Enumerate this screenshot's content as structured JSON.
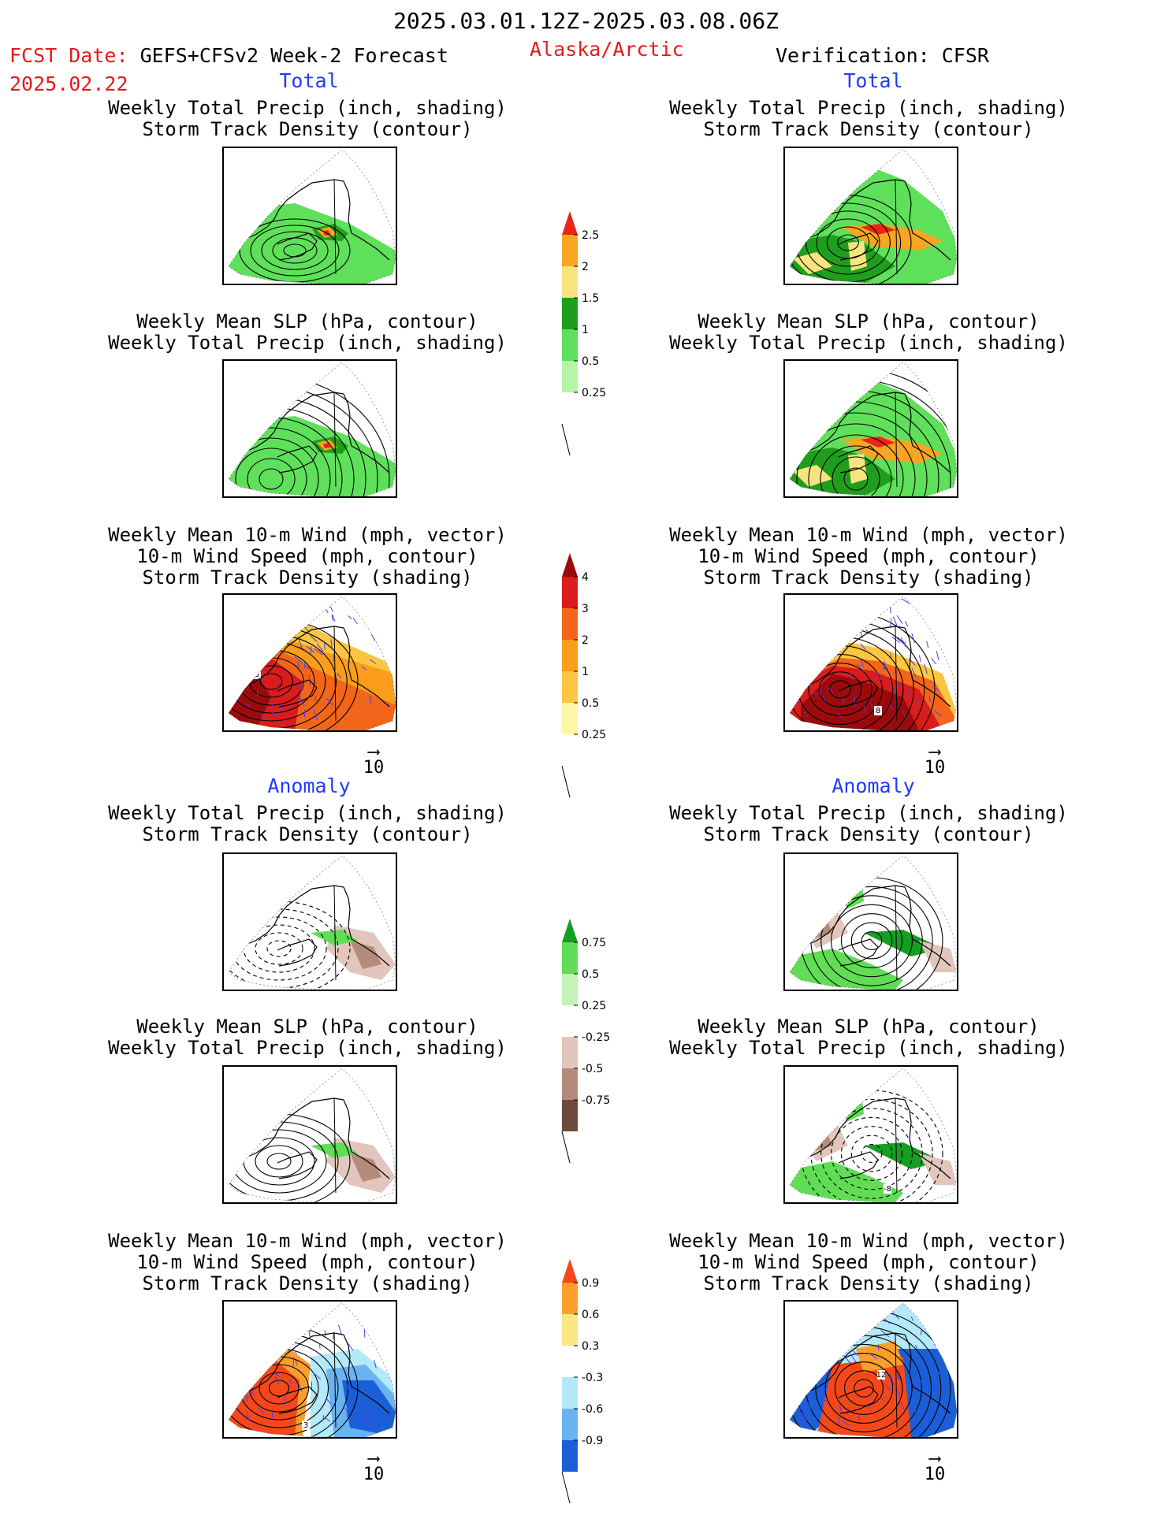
{
  "header": {
    "date_range": "2025.03.01.12Z-2025.03.08.06Z",
    "fcst_label": "FCST Date:",
    "fcst_model": "GEFS+CFSv2 Week-2 Forecast",
    "fcst_date": "2025.02.22",
    "region": "Alaska/Arctic",
    "verification": "Verification: CFSR"
  },
  "sections": {
    "total_left": "Total",
    "total_right": "Total",
    "anomaly_left": "Anomaly",
    "anomaly_right": "Anomaly"
  },
  "panel_titles": {
    "precip_track": [
      "Weekly Total Precip (inch, shading)",
      "Storm Track Density (contour)"
    ],
    "slp_precip": [
      "Weekly Mean SLP (hPa, contour)",
      "Weekly Total Precip (inch, shading)"
    ],
    "wind_track": [
      "Weekly Mean 10-m Wind (mph, vector)",
      "10-m Wind Speed (mph, contour)",
      "Storm Track Density (shading)"
    ]
  },
  "vector_ref": "10",
  "colors": {
    "precip": [
      "#b4f5a8",
      "#5fe05a",
      "#1f9e1c",
      "#f8e47e",
      "#f8a522",
      "#e8251a"
    ],
    "track": [
      "#fff6a6",
      "#fcc542",
      "#f99d1a",
      "#f3661a",
      "#d91c1c",
      "#9b0b0b"
    ],
    "anom_precip_pos": [
      "#c4f2b8",
      "#60dd55",
      "#149e22"
    ],
    "anom_precip_neg": [
      "#e2c5bc",
      "#b48b7b",
      "#6e4a3e"
    ],
    "anom_track_pos": [
      "#fbe685",
      "#fb9e2a",
      "#f5481a"
    ],
    "anom_track_neg": [
      "#b3e9f9",
      "#6ab3f2",
      "#1a5fd8"
    ]
  },
  "chart_data": [
    {
      "type": "heatmap",
      "name": "colorbar-total-precip",
      "levels": [
        0.25,
        0.5,
        1,
        1.5,
        2,
        2.5
      ],
      "tick_labels": [
        "2.5",
        "2",
        "1.5",
        "1",
        "0.5",
        "0.25"
      ]
    },
    {
      "type": "heatmap",
      "name": "colorbar-total-track",
      "levels": [
        0.25,
        0.5,
        1,
        2,
        3,
        4
      ],
      "tick_labels": [
        "4",
        "3",
        "2",
        "1",
        "0.5",
        "0.25"
      ]
    },
    {
      "type": "heatmap",
      "name": "colorbar-anomaly-precip",
      "levels": [
        -0.75,
        -0.5,
        -0.25,
        0.25,
        0.5,
        0.75
      ],
      "tick_labels": [
        "0.75",
        "0.5",
        "0.25",
        "-0.25",
        "-0.5",
        "-0.75"
      ]
    },
    {
      "type": "heatmap",
      "name": "colorbar-anomaly-track",
      "levels": [
        -0.9,
        -0.6,
        -0.3,
        0.3,
        0.6,
        0.9
      ],
      "tick_labels": [
        "0.9",
        "0.6",
        "0.3",
        "-0.3",
        "-0.6",
        "-0.9"
      ]
    }
  ],
  "map_labels": {
    "total_wind_left": "8",
    "total_wind_right": "8",
    "anom_slp_right": "-8",
    "anom_wind_left": "3",
    "anom_wind_right": "12"
  }
}
